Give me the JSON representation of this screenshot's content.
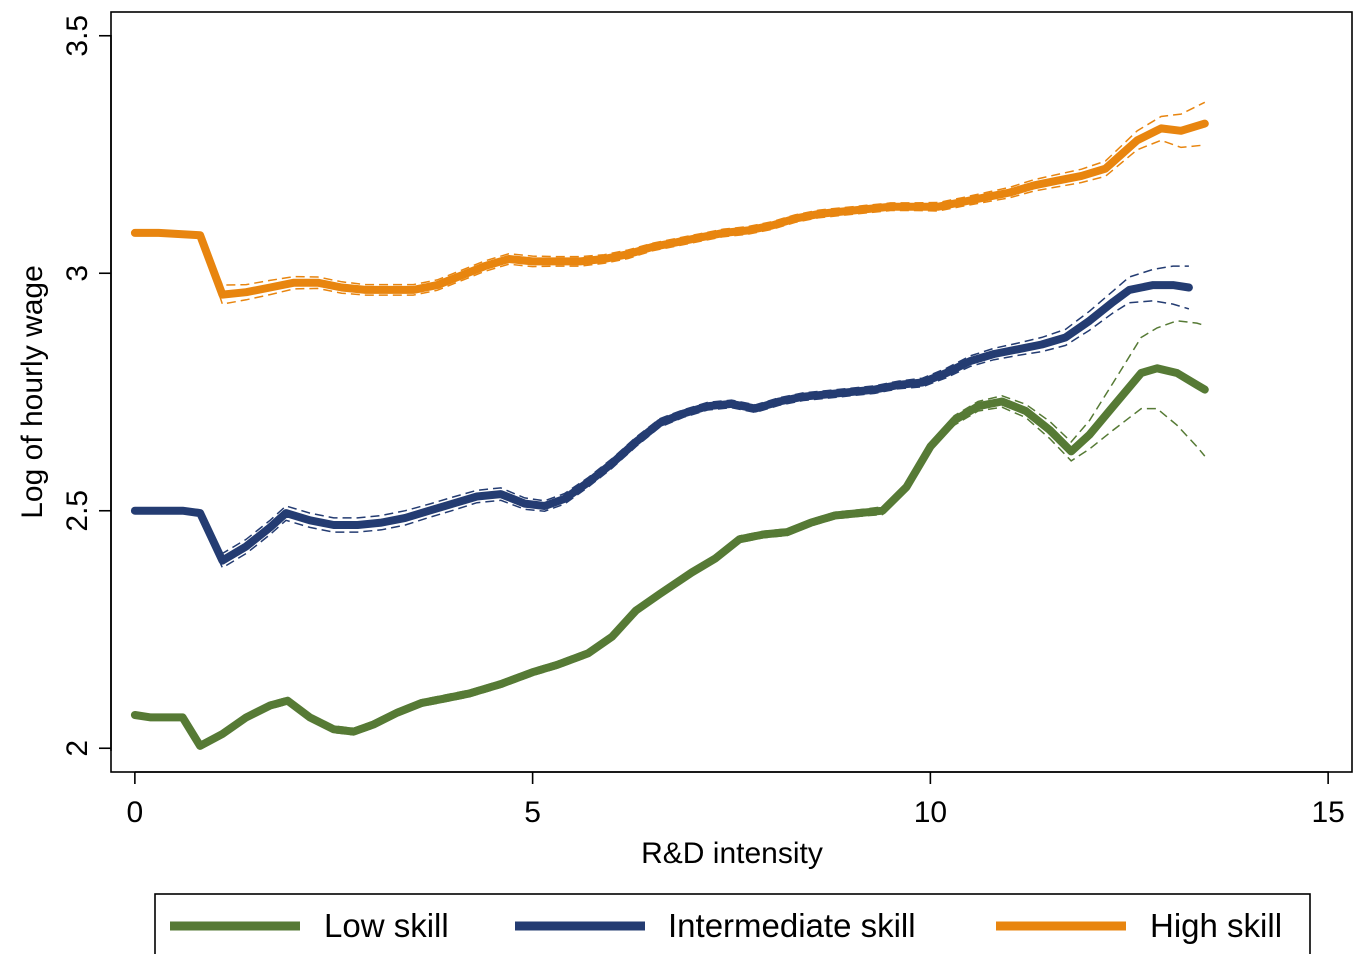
{
  "chart_data": {
    "type": "line",
    "xlabel": "R&D intensity",
    "ylabel": "Log of hourly wage",
    "xlim": [
      -0.3,
      15.3
    ],
    "ylim": [
      1.95,
      3.55
    ],
    "xticks": [
      0,
      5,
      10,
      15
    ],
    "xtick_labels": [
      "0",
      "5",
      "10",
      "15"
    ],
    "yticks": [
      2,
      2.5,
      3,
      3.5
    ],
    "ytick_labels": [
      "2",
      "2.5",
      "3",
      "3.5"
    ],
    "grid": false,
    "legend_position": "bottom",
    "confidence_bands": "dashed",
    "series": [
      {
        "name": "Low skill",
        "color": "#567a35",
        "x": [
          0,
          0.2,
          0.6,
          0.82,
          1.1,
          1.4,
          1.7,
          1.92,
          2.2,
          2.5,
          2.75,
          3.0,
          3.3,
          3.6,
          3.9,
          4.2,
          4.6,
          5.0,
          5.3,
          5.7,
          6.0,
          6.3,
          6.6,
          7.0,
          7.3,
          7.6,
          7.9,
          8.2,
          8.5,
          8.8,
          9.1,
          9.4,
          9.7,
          10.0,
          10.3,
          10.6,
          10.9,
          11.2,
          11.5,
          11.77,
          12.0,
          12.3,
          12.65,
          12.85,
          13.1,
          13.35,
          13.45
        ],
        "y": [
          2.07,
          2.065,
          2.065,
          2.005,
          2.03,
          2.065,
          2.09,
          2.1,
          2.065,
          2.04,
          2.035,
          2.05,
          2.075,
          2.095,
          2.105,
          2.115,
          2.135,
          2.16,
          2.175,
          2.2,
          2.235,
          2.29,
          2.325,
          2.37,
          2.4,
          2.44,
          2.45,
          2.455,
          2.475,
          2.49,
          2.495,
          2.5,
          2.55,
          2.635,
          2.69,
          2.72,
          2.73,
          2.71,
          2.67,
          2.625,
          2.66,
          2.72,
          2.79,
          2.8,
          2.79,
          2.765,
          2.755
        ],
        "upper": [
          2.075,
          2.07,
          2.07,
          2.012,
          2.037,
          2.072,
          2.097,
          2.107,
          2.072,
          2.047,
          2.042,
          2.057,
          2.082,
          2.102,
          2.112,
          2.122,
          2.142,
          2.167,
          2.182,
          2.207,
          2.242,
          2.297,
          2.332,
          2.377,
          2.407,
          2.447,
          2.457,
          2.462,
          2.482,
          2.497,
          2.502,
          2.508,
          2.558,
          2.643,
          2.7,
          2.73,
          2.742,
          2.724,
          2.688,
          2.645,
          2.69,
          2.77,
          2.865,
          2.885,
          2.9,
          2.895,
          2.89
        ],
        "lower": [
          2.065,
          2.06,
          2.06,
          1.998,
          2.023,
          2.058,
          2.083,
          2.093,
          2.058,
          2.033,
          2.028,
          2.043,
          2.068,
          2.088,
          2.098,
          2.108,
          2.128,
          2.153,
          2.168,
          2.193,
          2.228,
          2.283,
          2.318,
          2.363,
          2.393,
          2.433,
          2.443,
          2.448,
          2.468,
          2.483,
          2.488,
          2.492,
          2.542,
          2.627,
          2.68,
          2.71,
          2.718,
          2.696,
          2.652,
          2.605,
          2.63,
          2.67,
          2.715,
          2.715,
          2.68,
          2.635,
          2.615
        ]
      },
      {
        "name": "Intermediate skill",
        "color": "#243c72",
        "x": [
          0,
          0.3,
          0.6,
          0.82,
          1.1,
          1.4,
          1.7,
          1.9,
          2.2,
          2.5,
          2.8,
          3.1,
          3.4,
          3.7,
          4.0,
          4.3,
          4.6,
          4.9,
          5.15,
          5.4,
          5.7,
          6.0,
          6.3,
          6.6,
          6.9,
          7.2,
          7.5,
          7.8,
          8.1,
          8.4,
          8.7,
          9.0,
          9.3,
          9.6,
          9.9,
          10.2,
          10.5,
          10.8,
          11.1,
          11.4,
          11.7,
          12.0,
          12.3,
          12.5,
          12.8,
          13.05,
          13.25
        ],
        "y": [
          2.5,
          2.5,
          2.5,
          2.495,
          2.395,
          2.425,
          2.465,
          2.495,
          2.48,
          2.47,
          2.47,
          2.475,
          2.485,
          2.5,
          2.515,
          2.53,
          2.535,
          2.515,
          2.51,
          2.525,
          2.56,
          2.6,
          2.645,
          2.685,
          2.705,
          2.72,
          2.725,
          2.715,
          2.73,
          2.74,
          2.745,
          2.75,
          2.755,
          2.765,
          2.77,
          2.79,
          2.815,
          2.83,
          2.84,
          2.85,
          2.865,
          2.9,
          2.94,
          2.965,
          2.975,
          2.975,
          2.97
        ],
        "upper": [
          2.505,
          2.505,
          2.505,
          2.502,
          2.41,
          2.44,
          2.48,
          2.51,
          2.495,
          2.485,
          2.485,
          2.49,
          2.5,
          2.514,
          2.529,
          2.543,
          2.548,
          2.527,
          2.521,
          2.536,
          2.57,
          2.61,
          2.655,
          2.694,
          2.713,
          2.728,
          2.733,
          2.723,
          2.738,
          2.748,
          2.753,
          2.758,
          2.763,
          2.773,
          2.779,
          2.8,
          2.826,
          2.842,
          2.853,
          2.865,
          2.882,
          2.92,
          2.963,
          2.992,
          3.008,
          3.015,
          3.015
        ],
        "lower": [
          2.495,
          2.495,
          2.495,
          2.488,
          2.38,
          2.41,
          2.45,
          2.48,
          2.465,
          2.455,
          2.455,
          2.46,
          2.47,
          2.486,
          2.501,
          2.517,
          2.522,
          2.503,
          2.499,
          2.514,
          2.55,
          2.59,
          2.635,
          2.676,
          2.697,
          2.712,
          2.717,
          2.707,
          2.722,
          2.732,
          2.737,
          2.742,
          2.747,
          2.757,
          2.761,
          2.78,
          2.804,
          2.818,
          2.827,
          2.835,
          2.848,
          2.88,
          2.917,
          2.938,
          2.942,
          2.935,
          2.925
        ]
      },
      {
        "name": "High skill",
        "color": "#e8850f",
        "x": [
          0,
          0.3,
          0.6,
          0.82,
          1.1,
          1.4,
          1.7,
          2.0,
          2.3,
          2.6,
          2.9,
          3.2,
          3.5,
          3.8,
          4.1,
          4.4,
          4.7,
          5.0,
          5.3,
          5.6,
          5.9,
          6.2,
          6.5,
          6.8,
          7.1,
          7.4,
          7.7,
          8.0,
          8.3,
          8.6,
          8.9,
          9.2,
          9.5,
          9.8,
          10.1,
          10.4,
          10.7,
          11.0,
          11.3,
          11.6,
          11.9,
          12.2,
          12.4,
          12.6,
          12.9,
          13.15,
          13.45
        ],
        "y": [
          3.085,
          3.085,
          3.082,
          3.08,
          2.955,
          2.96,
          2.97,
          2.98,
          2.98,
          2.97,
          2.965,
          2.965,
          2.965,
          2.975,
          2.995,
          3.015,
          3.03,
          3.025,
          3.025,
          3.025,
          3.03,
          3.04,
          3.055,
          3.065,
          3.075,
          3.085,
          3.09,
          3.1,
          3.115,
          3.125,
          3.13,
          3.135,
          3.14,
          3.14,
          3.14,
          3.15,
          3.16,
          3.17,
          3.185,
          3.195,
          3.205,
          3.22,
          3.25,
          3.28,
          3.305,
          3.3,
          3.315
        ],
        "upper": [
          3.09,
          3.09,
          3.087,
          3.085,
          2.975,
          2.976,
          2.985,
          2.993,
          2.992,
          2.982,
          2.976,
          2.976,
          2.976,
          2.986,
          3.006,
          3.026,
          3.041,
          3.036,
          3.035,
          3.035,
          3.039,
          3.049,
          3.063,
          3.073,
          3.083,
          3.093,
          3.098,
          3.108,
          3.123,
          3.133,
          3.138,
          3.143,
          3.148,
          3.148,
          3.149,
          3.159,
          3.17,
          3.181,
          3.197,
          3.208,
          3.219,
          3.236,
          3.268,
          3.3,
          3.33,
          3.335,
          3.36
        ],
        "lower": [
          3.08,
          3.08,
          3.077,
          3.075,
          2.935,
          2.944,
          2.955,
          2.967,
          2.968,
          2.958,
          2.954,
          2.954,
          2.954,
          2.964,
          2.984,
          3.004,
          3.019,
          3.014,
          3.015,
          3.015,
          3.021,
          3.031,
          3.047,
          3.057,
          3.067,
          3.077,
          3.082,
          3.092,
          3.107,
          3.117,
          3.122,
          3.127,
          3.132,
          3.132,
          3.131,
          3.141,
          3.15,
          3.159,
          3.173,
          3.182,
          3.191,
          3.204,
          3.232,
          3.26,
          3.28,
          3.265,
          3.27
        ]
      }
    ]
  }
}
